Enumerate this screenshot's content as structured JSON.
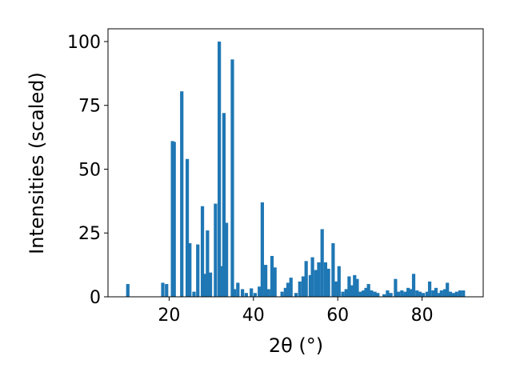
{
  "chart_data": {
    "type": "bar",
    "xlabel": "2θ (°)",
    "ylabel": "Intensities (scaled)",
    "color": "#1f77b4",
    "grid": false,
    "xlim": [
      5.5,
      94.5
    ],
    "xticks": [
      20,
      40,
      60,
      80
    ],
    "ylim": [
      0,
      105
    ],
    "yticks": [
      0,
      25,
      50,
      75,
      100
    ],
    "x": [
      10.2,
      18.5,
      19.4,
      20.8,
      21.2,
      23.0,
      24.3,
      24.9,
      25.9,
      26.8,
      27.9,
      28.5,
      29.1,
      29.8,
      31.0,
      31.9,
      32.3,
      33.0,
      33.6,
      35.0,
      35.5,
      36.3,
      37.4,
      38.3,
      39.5,
      40.4,
      41.4,
      42.1,
      42.9,
      43.6,
      44.4,
      45.1,
      46.8,
      47.6,
      48.2,
      48.9,
      50.1,
      51.0,
      51.8,
      52.5,
      53.5,
      54.0,
      54.8,
      55.5,
      56.3,
      57.1,
      57.8,
      58.9,
      59.7,
      60.3,
      61.2,
      62.0,
      62.7,
      63.3,
      64.0,
      64.6,
      65.4,
      66.1,
      66.7,
      67.3,
      68.0,
      68.8,
      69.5,
      71.0,
      71.8,
      72.6,
      73.7,
      74.4,
      75.2,
      76.0,
      76.7,
      77.3,
      78.0,
      78.8,
      79.5,
      80.3,
      81.2,
      81.8,
      82.6,
      83.3,
      84.1,
      84.6,
      85.4,
      86.0,
      86.7,
      87.5,
      88.2,
      89.0,
      89.8
    ],
    "values": [
      5,
      5.5,
      5,
      61,
      60.7,
      80.5,
      54,
      21,
      2,
      20.5,
      35.5,
      9,
      26,
      9.5,
      36.5,
      100,
      12,
      72,
      29,
      93,
      3,
      5.5,
      3,
      1.5,
      3.3,
      1.5,
      4,
      37,
      12.5,
      3,
      16,
      11.5,
      2,
      3.5,
      5.5,
      7.5,
      1.5,
      6,
      8,
      14,
      8.5,
      15.5,
      10.5,
      13.5,
      26.5,
      13.5,
      11,
      21,
      6,
      12,
      2,
      3,
      8,
      4.5,
      8.5,
      7,
      2,
      2.5,
      3.5,
      5,
      2.5,
      2,
      1.5,
      1,
      2.5,
      1.5,
      7,
      2,
      2.5,
      2,
      3.5,
      3,
      9,
      2.5,
      2,
      1.5,
      2,
      6,
      2.5,
      3.5,
      1.5,
      2.5,
      3,
      5.5,
      2,
      1.5,
      2,
      2.5,
      2.5
    ]
  }
}
